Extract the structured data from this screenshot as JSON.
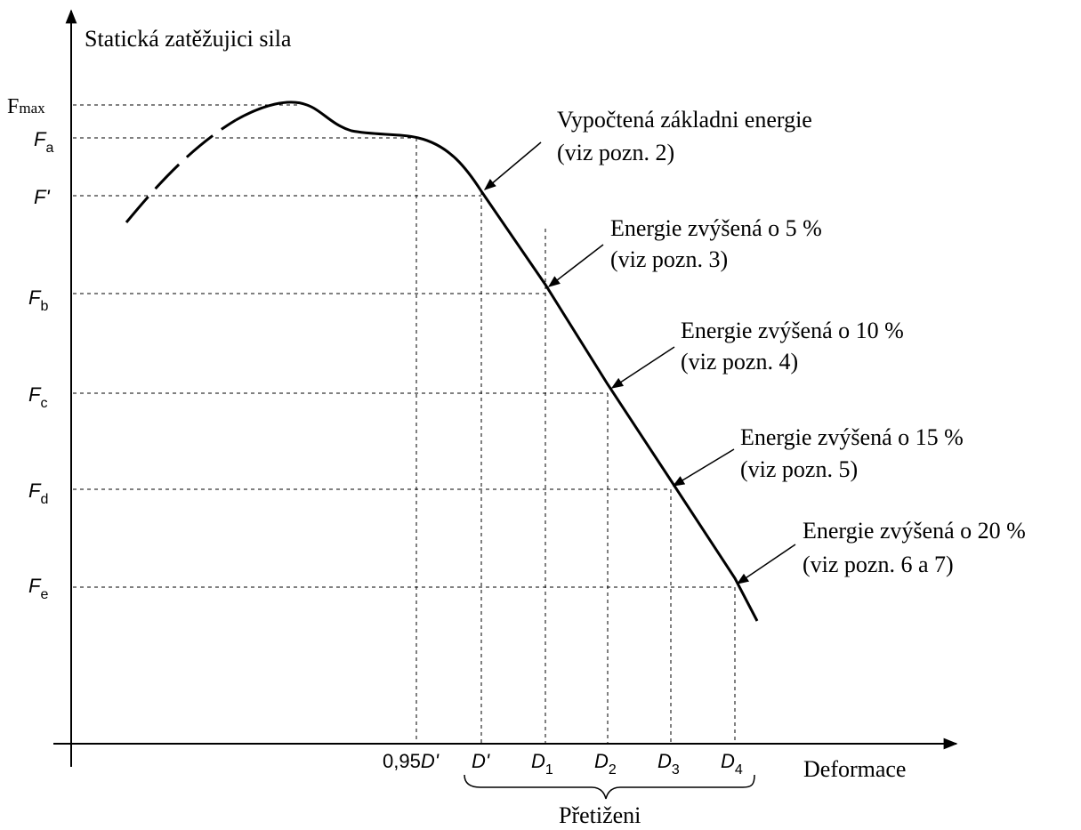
{
  "y_axis_title": "Statická zatěžujici sila",
  "x_axis_title": "Deformace",
  "overload_label": "Přetiženi",
  "y_ticks": {
    "fmax": {
      "main": "F",
      "sub": "max"
    },
    "fa": {
      "main": "F",
      "sub": "a"
    },
    "fprime": {
      "main": "F'"
    },
    "fb": {
      "main": "F",
      "sub": "b"
    },
    "fc": {
      "main": "F",
      "sub": "c"
    },
    "fd": {
      "main": "F",
      "sub": "d"
    },
    "fe": {
      "main": "F",
      "sub": "e"
    }
  },
  "x_ticks": {
    "d095": {
      "prefix": "0,95",
      "main": "D'"
    },
    "dprime": {
      "main": "D'"
    },
    "d1": {
      "main": "D",
      "sub": "1"
    },
    "d2": {
      "main": "D",
      "sub": "2"
    },
    "d3": {
      "main": "D",
      "sub": "3"
    },
    "d4": {
      "main": "D",
      "sub": "4"
    }
  },
  "annotations": [
    {
      "line1": "Vypočtená základni energie",
      "line2": "(viz pozn. 2)"
    },
    {
      "line1": "Energie zvýšená o 5 %",
      "line2": "(viz pozn. 3)"
    },
    {
      "line1": "Energie zvýšená o 10 %",
      "line2": "(viz pozn. 4)"
    },
    {
      "line1": "Energie zvýšená o 15 %",
      "line2": "(viz pozn. 5)"
    },
    {
      "line1": "Energie zvýšená o 20 %",
      "line2": "(viz pozn. 6 a 7)"
    }
  ]
}
